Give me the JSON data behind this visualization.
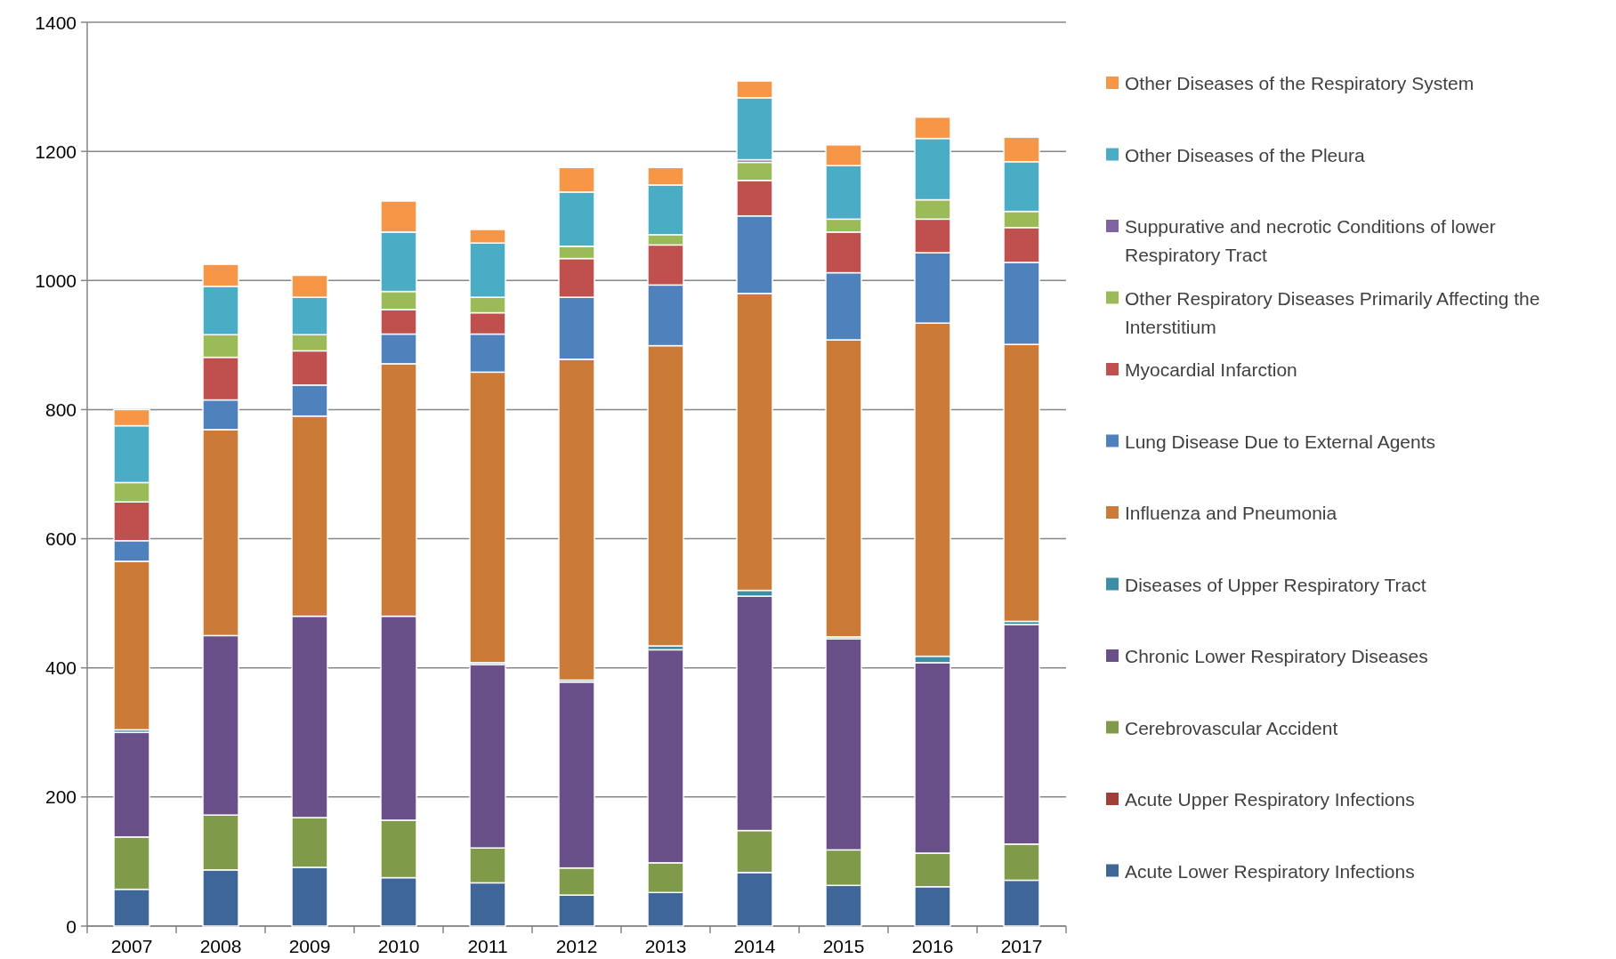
{
  "chart_data": {
    "type": "bar",
    "stacked": true,
    "categories": [
      "2007",
      "2008",
      "2009",
      "2010",
      "2011",
      "2012",
      "2013",
      "2014",
      "2015",
      "2016",
      "2017"
    ],
    "ylim": [
      0,
      1400
    ],
    "yticks": [
      0,
      200,
      400,
      600,
      800,
      1000,
      1200,
      1400
    ],
    "grid": "y",
    "legend": "right",
    "series": [
      {
        "name": "Acute Lower Respiratory Infections",
        "color": "#3e6699",
        "values": [
          57,
          87,
          91,
          75,
          67,
          48,
          52,
          83,
          63,
          61,
          71
        ]
      },
      {
        "name": "Acute Upper Respiratory Infections",
        "color": "#a33d3a",
        "values": [
          0,
          0,
          0,
          0,
          0,
          0,
          0,
          0,
          0,
          0,
          0
        ]
      },
      {
        "name": "Cerebrovascular Accident",
        "color": "#7f9a48",
        "values": [
          81,
          85,
          77,
          89,
          54,
          42,
          46,
          65,
          55,
          52,
          56
        ]
      },
      {
        "name": "Chronic Lower Respiratory Diseases",
        "color": "#6a5088",
        "values": [
          162,
          278,
          312,
          316,
          284,
          288,
          330,
          363,
          327,
          295,
          340
        ]
      },
      {
        "name": "Diseases of Upper Respiratory Tract",
        "color": "#3b8ea5",
        "values": [
          4,
          null,
          null,
          null,
          3,
          3,
          6,
          9,
          3,
          10,
          5
        ]
      },
      {
        "name": "Influenza and Pneumonia",
        "color": "#cb7a38",
        "values": [
          261,
          319,
          310,
          391,
          450,
          497,
          465,
          460,
          460,
          516,
          429
        ]
      },
      {
        "name": "Lung Disease Due to External Agents",
        "color": "#4f81bd",
        "values": [
          32,
          46,
          48,
          46,
          59,
          96,
          94,
          120,
          104,
          109,
          127
        ]
      },
      {
        "name": "Myocardial Infarction",
        "color": "#c0504d",
        "values": [
          60,
          66,
          53,
          38,
          33,
          60,
          62,
          55,
          63,
          52,
          54
        ]
      },
      {
        "name": "Other Respiratory Diseases Primarily Affecting the Interstitium",
        "color": "#9bbb59",
        "values": [
          30,
          35,
          25,
          28,
          24,
          19,
          16,
          28,
          20,
          30,
          25
        ]
      },
      {
        "name": "Suppurative and necrotic Conditions of lower Respiratory Tract",
        "color": "#8064a2",
        "values": [
          0,
          0,
          0,
          0,
          0,
          0,
          0,
          4,
          0,
          null,
          0
        ]
      },
      {
        "name": "Other Diseases of the Pleura",
        "color": "#4bacc6",
        "values": [
          88,
          75,
          58,
          92,
          84,
          84,
          77,
          96,
          83,
          95,
          77
        ]
      },
      {
        "name": "Other Diseases of the Respiratory System",
        "color": "#f79646",
        "values": [
          25,
          34,
          34,
          48,
          21,
          38,
          27,
          26,
          32,
          33,
          38
        ]
      }
    ]
  }
}
